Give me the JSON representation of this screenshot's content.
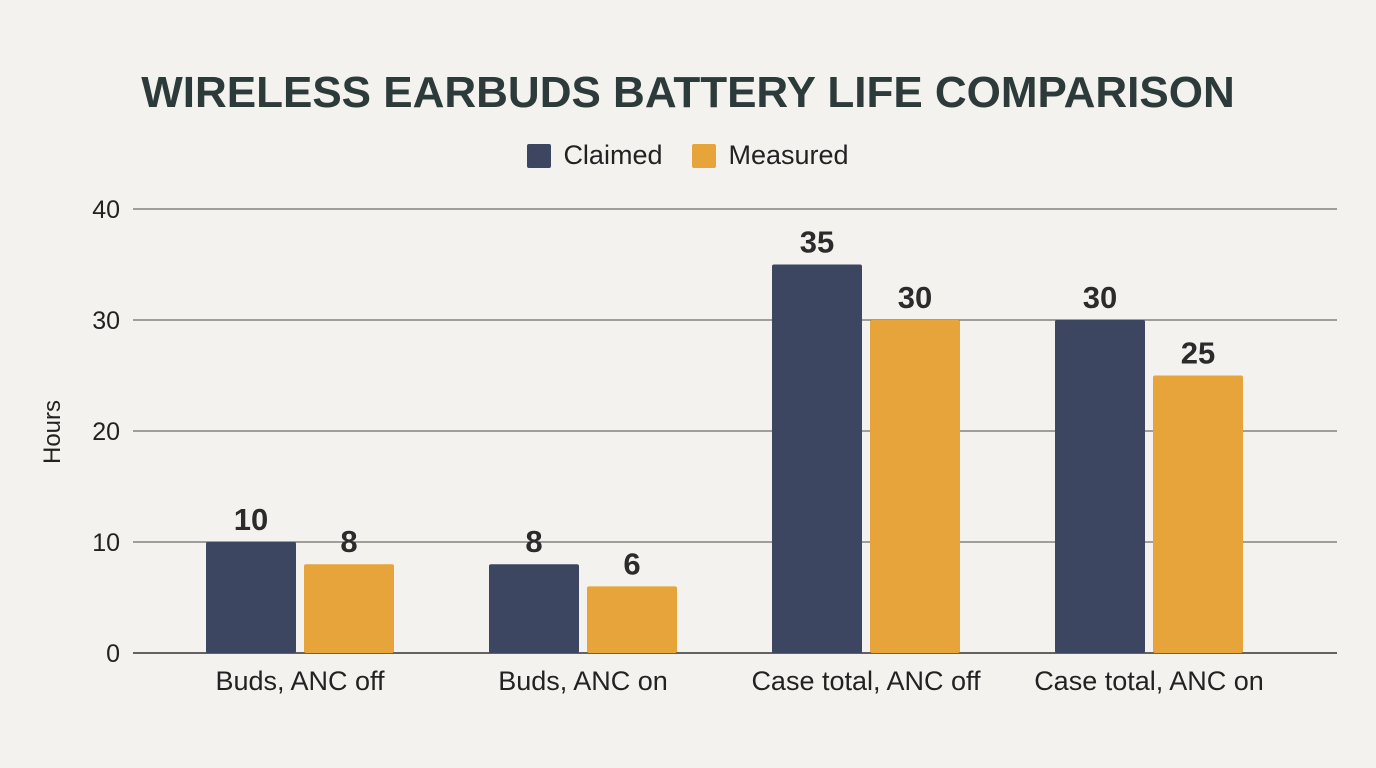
{
  "chart_data": {
    "type": "bar",
    "title": "WIRELESS EARBUDS BATTERY LIFE COMPARISON",
    "xlabel": "",
    "ylabel": "Hours",
    "ylim": [
      0,
      40
    ],
    "yticks": [
      0,
      10,
      20,
      30,
      40
    ],
    "categories": [
      "Buds, ANC off",
      "Buds, ANC on",
      "Case total, ANC off",
      "Case total, ANC on"
    ],
    "series": [
      {
        "name": "Claimed",
        "values": [
          10,
          8,
          35,
          30
        ],
        "color": "#3c4661"
      },
      {
        "name": "Measured",
        "values": [
          8,
          6,
          30,
          25
        ],
        "color": "#e6a43a"
      }
    ],
    "grid": true,
    "legend_position": "top-center",
    "data_labels": true
  }
}
